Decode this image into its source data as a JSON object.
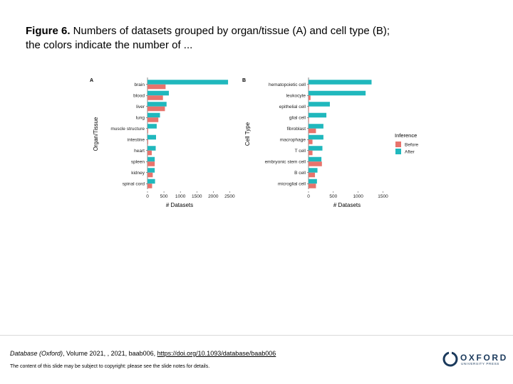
{
  "caption": {
    "label": "Figure 6.",
    "text": " Numbers of datasets grouped by organ/tissue (A) and cell type (B); the colors indicate the number of ..."
  },
  "colors": {
    "before": "#e8736c",
    "after": "#20b8bd",
    "axis": "#333333"
  },
  "chart_data": [
    {
      "panel": "A",
      "type": "bar",
      "orientation": "horizontal",
      "xlabel": "# Datasets",
      "ylabel": "Organ/Tissue",
      "xlim": [
        0,
        2600
      ],
      "xticks": [
        0,
        500,
        1000,
        1500,
        2000,
        2500
      ],
      "tick_labels": [
        "0",
        "500",
        "1000",
        "1500",
        "2000",
        "2500"
      ],
      "categories": [
        "brain",
        "blood",
        "liver",
        "lung",
        "muscle structure",
        "intestine",
        "heart",
        "spleen",
        "kidney",
        "spinal cord"
      ],
      "series": [
        {
          "name": "After",
          "values": [
            2450,
            650,
            580,
            380,
            280,
            260,
            250,
            220,
            220,
            230
          ]
        },
        {
          "name": "Before",
          "values": [
            550,
            470,
            530,
            330,
            20,
            20,
            130,
            220,
            160,
            140
          ]
        }
      ]
    },
    {
      "panel": "B",
      "type": "bar",
      "orientation": "horizontal",
      "xlabel": "# Datasets",
      "ylabel": "Cell Type",
      "xlim": [
        0,
        1550
      ],
      "xticks": [
        0,
        500,
        1000,
        1500
      ],
      "tick_labels": [
        "0",
        "500",
        "1000",
        "1500"
      ],
      "categories": [
        "hematopoietic cell",
        "leukocyte",
        "epithelial cell",
        "glial cell",
        "fibroblast",
        "macrophage",
        "T cell",
        "embryonic stem cell",
        "B cell",
        "microglial cell"
      ],
      "series": [
        {
          "name": "After",
          "values": [
            1270,
            1150,
            430,
            360,
            300,
            300,
            280,
            260,
            180,
            170
          ]
        },
        {
          "name": "Before",
          "values": [
            10,
            40,
            10,
            10,
            150,
            80,
            80,
            270,
            130,
            150
          ]
        }
      ]
    }
  ],
  "legend": {
    "title": "Inference",
    "items": [
      "Before",
      "After"
    ]
  },
  "citation": {
    "journal": "Database (Oxford)",
    "details": ", Volume 2021, , 2021, baab006, ",
    "doi": "https://doi.org/10.1093/database/baab006"
  },
  "copyright": "The content of this slide may be subject to copyright: please see the slide notes for details.",
  "logo": {
    "name": "OXFORD",
    "sub": "UNIVERSITY PRESS"
  }
}
